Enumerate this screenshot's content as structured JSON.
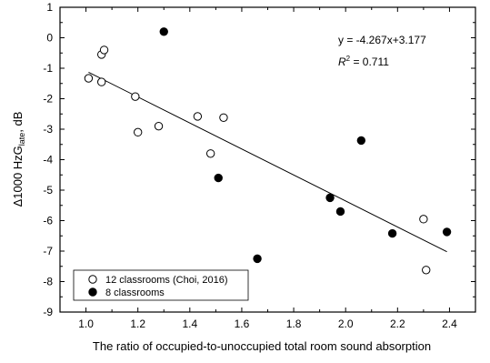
{
  "chart_data": {
    "type": "scatter",
    "xlabel": "The ratio of occupied-to-unoccupied total room sound absorption",
    "ylabel_prefix": "Δ1000 HzG",
    "ylabel_subscript": "late",
    "ylabel_suffix": ", dB",
    "xlim": [
      0.9,
      2.5
    ],
    "ylim": [
      -9,
      1
    ],
    "xticks": [
      "1.0",
      "1.2",
      "1.4",
      "1.6",
      "1.8",
      "2.0",
      "2.2",
      "2.4"
    ],
    "yticks": [
      "1",
      "0",
      "-1",
      "-2",
      "-3",
      "-4",
      "-5",
      "-6",
      "-7",
      "-8",
      "-9"
    ],
    "grid": false,
    "legend_position": "bottom-left",
    "series": [
      {
        "name": "12 classrooms (Choi, 2016)",
        "marker": "open-circle",
        "x": [
          1.01,
          1.06,
          1.07,
          1.06,
          1.19,
          1.2,
          1.28,
          1.43,
          1.48,
          1.53,
          2.3,
          2.31
        ],
        "y": [
          -1.33,
          -0.55,
          -0.4,
          -1.45,
          -1.93,
          -3.1,
          -2.9,
          -2.58,
          -3.8,
          -2.62,
          -5.95,
          -7.62
        ]
      },
      {
        "name": "8 classrooms",
        "marker": "filled-circle",
        "x": [
          1.3,
          1.51,
          1.66,
          1.94,
          1.98,
          2.06,
          2.18,
          2.39
        ],
        "y": [
          0.2,
          -4.6,
          -7.25,
          -5.25,
          -5.7,
          -3.37,
          -6.42,
          -6.37
        ]
      }
    ],
    "trendline": {
      "slope": -4.267,
      "intercept": 3.177,
      "x_range": [
        1.01,
        2.39
      ],
      "equation_label": "y = -4.267x+3.177",
      "r2_label_prefix": "R",
      "r2_label_suffix": " = 0.711"
    }
  }
}
